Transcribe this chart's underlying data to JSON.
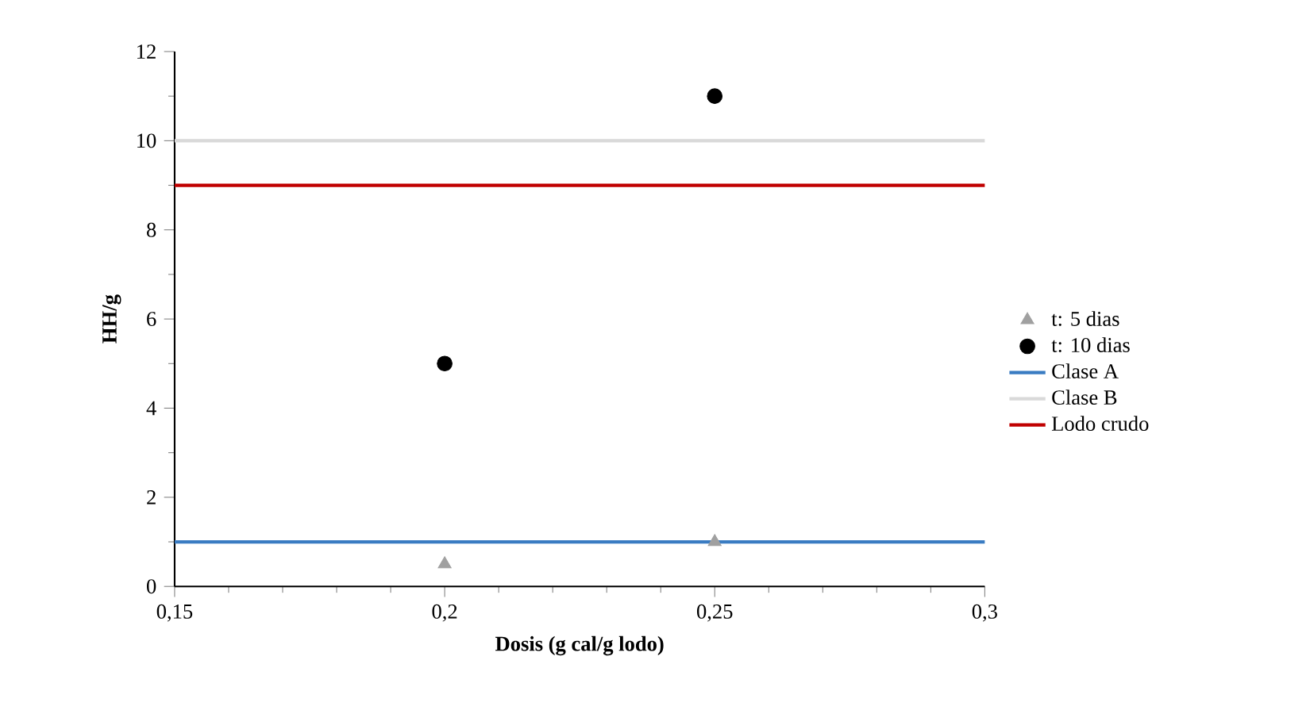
{
  "chart_data": {
    "type": "scatter",
    "xlabel": "Dosis (g cal/g lodo)",
    "ylabel": "HH/g",
    "series": [
      {
        "name": "t: 5 dias",
        "marker": "triangle",
        "color": "#a0a0a0",
        "x": [
          0.2,
          0.25
        ],
        "values": [
          0.5,
          1
        ]
      },
      {
        "name": "t: 10 dias",
        "marker": "circle",
        "color": "#000000",
        "x": [
          0.2,
          0.25
        ],
        "values": [
          5,
          11
        ]
      },
      {
        "name": "Clase A",
        "type": "line",
        "marker": "none",
        "color": "#3a7cc2",
        "x": [
          0.15,
          0.3
        ],
        "values": [
          1,
          1
        ]
      },
      {
        "name": "Clase B",
        "type": "line",
        "marker": "none",
        "color": "#d9d9d9",
        "x": [
          0.15,
          0.3
        ],
        "values": [
          10,
          10
        ]
      },
      {
        "name": "Lodo crudo",
        "type": "line",
        "marker": "none",
        "color": "#c00000",
        "x": [
          0.15,
          0.3
        ],
        "values": [
          9,
          9
        ]
      }
    ],
    "xlim": [
      0.15,
      0.3
    ],
    "xticks": [
      {
        "value": 0.15,
        "label": "0,15"
      },
      {
        "value": 0.16,
        "label": null
      },
      {
        "value": 0.17,
        "label": null
      },
      {
        "value": 0.18,
        "label": null
      },
      {
        "value": 0.19,
        "label": null
      },
      {
        "value": 0.2,
        "label": "0,2"
      },
      {
        "value": 0.21,
        "label": null
      },
      {
        "value": 0.22,
        "label": null
      },
      {
        "value": 0.23,
        "label": null
      },
      {
        "value": 0.24,
        "label": null
      },
      {
        "value": 0.25,
        "label": "0,25"
      },
      {
        "value": 0.26,
        "label": null
      },
      {
        "value": 0.27,
        "label": null
      },
      {
        "value": 0.28,
        "label": null
      },
      {
        "value": 0.29,
        "label": null
      },
      {
        "value": 0.3,
        "label": "0,3"
      }
    ],
    "ylim": [
      0,
      12
    ],
    "yticks": [
      0,
      {
        "value": 1,
        "label": null
      },
      2,
      {
        "value": 3,
        "label": null
      },
      4,
      {
        "value": 5,
        "label": null
      },
      6,
      {
        "value": 7,
        "label": null
      },
      8,
      {
        "value": 9,
        "label": null
      },
      10,
      {
        "value": 11,
        "label": null
      },
      12
    ],
    "grid": false,
    "legend": "right"
  }
}
